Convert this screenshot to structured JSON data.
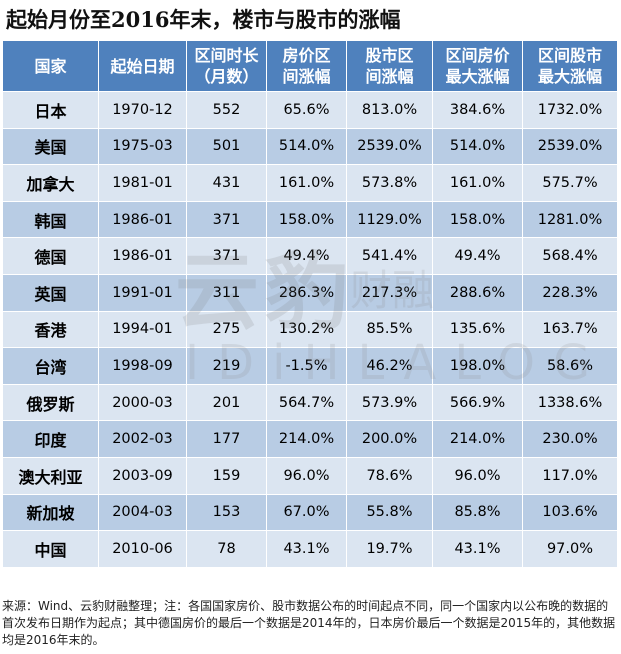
{
  "title": "起始月份至2016年末，楼市与股市的涨幅",
  "columns": [
    {
      "line1": "国家",
      "line2": ""
    },
    {
      "line1": "起始日期",
      "line2": ""
    },
    {
      "line1": "区间时长",
      "line2": "（月数）"
    },
    {
      "line1": "房价区",
      "line2": "间涨幅"
    },
    {
      "line1": "股市区",
      "line2": "间涨幅"
    },
    {
      "line1": "区间房价",
      "line2": "最大涨幅"
    },
    {
      "line1": "区间股市",
      "line2": "最大涨幅"
    }
  ],
  "rows": [
    [
      "日本",
      "1970-12",
      "552",
      "65.6%",
      "813.0%",
      "384.6%",
      "1732.0%"
    ],
    [
      "美国",
      "1975-03",
      "501",
      "514.0%",
      "2539.0%",
      "514.0%",
      "2539.0%"
    ],
    [
      "加拿大",
      "1981-01",
      "431",
      "161.0%",
      "573.8%",
      "161.0%",
      "575.7%"
    ],
    [
      "韩国",
      "1986-01",
      "371",
      "158.0%",
      "1129.0%",
      "158.0%",
      "1281.0%"
    ],
    [
      "德国",
      "1986-01",
      "371",
      "49.4%",
      "541.4%",
      "49.4%",
      "568.4%"
    ],
    [
      "英国",
      "1991-01",
      "311",
      "286.3%",
      "217.3%",
      "288.6%",
      "228.3%"
    ],
    [
      "香港",
      "1994-01",
      "275",
      "130.2%",
      "85.5%",
      "135.6%",
      "163.7%"
    ],
    [
      "台湾",
      "1998-09",
      "219",
      "-1.5%",
      "46.2%",
      "198.0%",
      "58.6%"
    ],
    [
      "俄罗斯",
      "2000-03",
      "201",
      "564.7%",
      "573.9%",
      "566.9%",
      "1338.6%"
    ],
    [
      "印度",
      "2002-03",
      "177",
      "214.0%",
      "200.0%",
      "214.0%",
      "230.0%"
    ],
    [
      "澳大利亚",
      "2003-09",
      "159",
      "96.0%",
      "78.6%",
      "96.0%",
      "117.0%"
    ],
    [
      "新加坡",
      "2004-03",
      "153",
      "67.0%",
      "55.8%",
      "85.8%",
      "103.6%"
    ],
    [
      "中国",
      "2010-06",
      "78",
      "43.1%",
      "19.7%",
      "43.1%",
      "97.0%"
    ]
  ],
  "footer": "来源：Wind、云豹财融整理；注：各国国家房价、股市数据公布的时间起点不同，同一个国家内以公布晚的数据的首次发布日期作为起点；其中德国房价的最后一个数据是2014年的，日本房价最后一个数据是2015年的，其他数据均是2016年末的。",
  "watermark": {
    "big": "云豹",
    "small": "财融",
    "latin": "IDiHLALOG"
  },
  "colors": {
    "header": "#4f81bd",
    "row_light": "#dbe5f1",
    "row_dark": "#b8cce4"
  }
}
